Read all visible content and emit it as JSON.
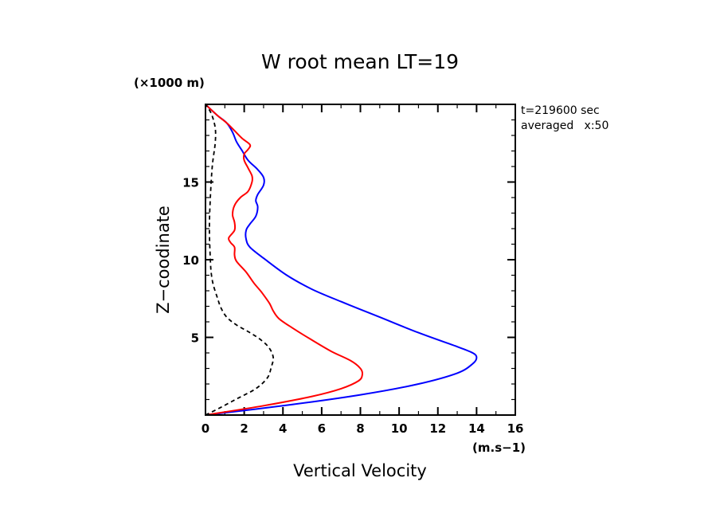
{
  "chart_data": {
    "type": "line",
    "title": "W root mean LT=19",
    "xlabel": "Vertical Velocity",
    "xunits": "(m.s−1)",
    "ylabel": "Z−coodinate",
    "yunits": "(×1000 m)",
    "xlim": [
      0,
      16
    ],
    "ylim": [
      0,
      20
    ],
    "xticks": [
      0,
      2,
      4,
      6,
      8,
      10,
      12,
      14,
      16
    ],
    "yticks": [
      5,
      10,
      15
    ],
    "annotations": [
      "t=219600 sec",
      "averaged   x:50"
    ],
    "grid": false,
    "series": [
      {
        "name": "blue",
        "color": "#0000ff",
        "style": "solid",
        "points": [
          [
            0,
            0
          ],
          [
            4,
            0.6
          ],
          [
            8,
            1.3
          ],
          [
            11,
            2.0
          ],
          [
            13,
            2.7
          ],
          [
            13.8,
            3.3
          ],
          [
            14.0,
            3.7
          ],
          [
            13.8,
            4.0
          ],
          [
            13,
            4.4
          ],
          [
            11,
            5.3
          ],
          [
            9,
            6.3
          ],
          [
            7,
            7.3
          ],
          [
            5.5,
            8.1
          ],
          [
            4.2,
            9.0
          ],
          [
            3,
            10.1
          ],
          [
            2.3,
            10.8
          ],
          [
            2.1,
            11.3
          ],
          [
            2.1,
            11.9
          ],
          [
            2.3,
            12.3
          ],
          [
            2.6,
            12.8
          ],
          [
            2.7,
            13.4
          ],
          [
            2.6,
            13.8
          ],
          [
            2.7,
            14.2
          ],
          [
            3.0,
            14.8
          ],
          [
            3.0,
            15.3
          ],
          [
            2.7,
            15.8
          ],
          [
            2.2,
            16.4
          ],
          [
            1.9,
            17.0
          ],
          [
            1.6,
            17.6
          ],
          [
            1.4,
            18.2
          ],
          [
            1.1,
            18.8
          ],
          [
            0.6,
            19.3
          ],
          [
            0,
            20
          ]
        ]
      },
      {
        "name": "red",
        "color": "#ff0000",
        "style": "solid",
        "points": [
          [
            0,
            0
          ],
          [
            3,
            0.6
          ],
          [
            5.5,
            1.2
          ],
          [
            7,
            1.7
          ],
          [
            7.9,
            2.2
          ],
          [
            8.1,
            2.6
          ],
          [
            8.0,
            3.0
          ],
          [
            7.5,
            3.5
          ],
          [
            6.5,
            4.1
          ],
          [
            5.4,
            4.9
          ],
          [
            4.5,
            5.6
          ],
          [
            3.8,
            6.2
          ],
          [
            3.5,
            6.7
          ],
          [
            3.3,
            7.2
          ],
          [
            2.9,
            7.9
          ],
          [
            2.5,
            8.5
          ],
          [
            2.1,
            9.2
          ],
          [
            1.6,
            9.9
          ],
          [
            1.5,
            10.3
          ],
          [
            1.5,
            10.8
          ],
          [
            1.3,
            11.1
          ],
          [
            1.2,
            11.4
          ],
          [
            1.5,
            11.9
          ],
          [
            1.5,
            12.4
          ],
          [
            1.4,
            12.9
          ],
          [
            1.5,
            13.5
          ],
          [
            1.8,
            14.0
          ],
          [
            2.2,
            14.4
          ],
          [
            2.4,
            15.0
          ],
          [
            2.4,
            15.4
          ],
          [
            2.2,
            15.9
          ],
          [
            2.0,
            16.4
          ],
          [
            2.0,
            16.8
          ],
          [
            2.2,
            17.1
          ],
          [
            2.3,
            17.4
          ],
          [
            1.9,
            17.8
          ],
          [
            1.5,
            18.3
          ],
          [
            1.1,
            18.8
          ],
          [
            0.6,
            19.3
          ],
          [
            0,
            20
          ]
        ]
      },
      {
        "name": "black-dashed",
        "color": "#000000",
        "style": "dashed",
        "points": [
          [
            0,
            0
          ],
          [
            0.8,
            0.5
          ],
          [
            1.7,
            1.1
          ],
          [
            2.6,
            1.7
          ],
          [
            3.2,
            2.4
          ],
          [
            3.4,
            3.1
          ],
          [
            3.5,
            3.7
          ],
          [
            3.3,
            4.3
          ],
          [
            2.9,
            4.8
          ],
          [
            2.3,
            5.3
          ],
          [
            1.6,
            5.8
          ],
          [
            1.1,
            6.3
          ],
          [
            0.8,
            6.9
          ],
          [
            0.6,
            7.6
          ],
          [
            0.4,
            8.4
          ],
          [
            0.3,
            9.1
          ],
          [
            0.25,
            10
          ],
          [
            0.2,
            12
          ],
          [
            0.25,
            14
          ],
          [
            0.35,
            16
          ],
          [
            0.5,
            17.5
          ],
          [
            0.5,
            18.5
          ],
          [
            0.3,
            19.4
          ],
          [
            0,
            20
          ]
        ]
      }
    ]
  }
}
